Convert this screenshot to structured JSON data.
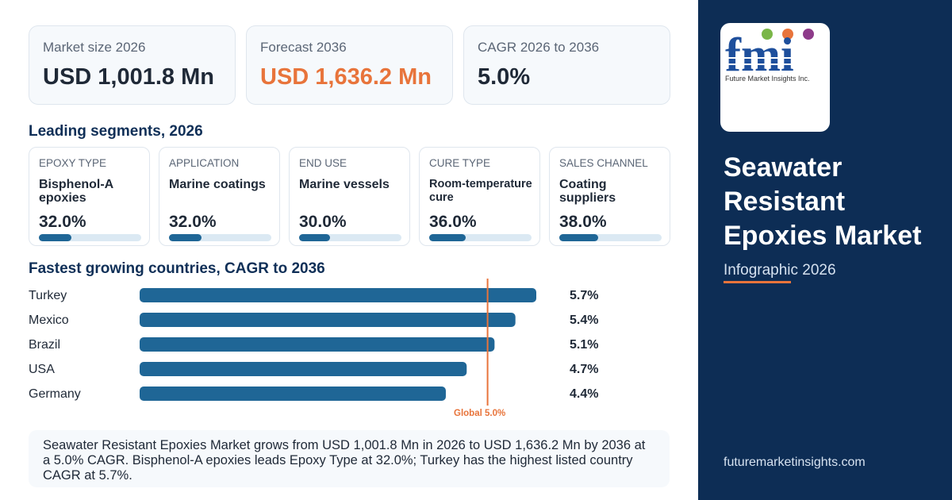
{
  "kpis": [
    {
      "label": "Market size 2026",
      "value": "USD 1,001.8 Mn"
    },
    {
      "label": "Forecast 2036",
      "value": "USD 1,636.2 Mn"
    },
    {
      "label": "CAGR 2026 to 2036",
      "value": "5.0%"
    }
  ],
  "segments_title": "Leading segments, 2026",
  "segments": [
    {
      "label": "EPOXY TYPE",
      "name": "Bisphenol-A epoxies",
      "share": "32.0%",
      "value": 32.0
    },
    {
      "label": "APPLICATION",
      "name": "Marine coatings",
      "share": "32.0%",
      "value": 32.0
    },
    {
      "label": "END USE",
      "name": "Marine vessels",
      "share": "30.0%",
      "value": 30.0
    },
    {
      "label": "CURE TYPE",
      "name": "Room-temperature cure",
      "share": "36.0%",
      "value": 36.0
    },
    {
      "label": "SALES CHANNEL",
      "name": "Coating suppliers",
      "share": "38.0%",
      "value": 38.0
    }
  ],
  "countries_title": "Fastest growing countries, CAGR to 2036",
  "chart_data": {
    "type": "bar",
    "orientation": "horizontal",
    "title": "Fastest growing countries, CAGR to 2036",
    "categories": [
      "Turkey",
      "Mexico",
      "Brazil",
      "USA",
      "Germany"
    ],
    "values": [
      5.7,
      5.4,
      5.1,
      4.7,
      4.4
    ],
    "value_labels": [
      "5.7%",
      "5.4%",
      "5.1%",
      "4.7%",
      "4.4%"
    ],
    "reference_line": {
      "value": 5.0,
      "label": "Global 5.0%"
    },
    "xlim": [
      0,
      5.7
    ],
    "grid": false,
    "colors": {
      "bar": "#1f6696",
      "reference": "#e8743b"
    }
  },
  "summary": "Seawater Resistant Epoxies Market grows from USD 1,001.8 Mn in 2026 to USD 1,636.2 Mn by 2036 at a 5.0% CAGR. Bisphenol-A epoxies leads Epoxy Type at 32.0%; Turkey has the highest listed country CAGR at 5.7%.",
  "sidebar": {
    "logo_text": "fmi",
    "logo_subtext": "Future Market Insights Inc.",
    "title": "Seawater Resistant Epoxies Market",
    "subtitle": "Infographic 2026",
    "url": "futuremarketinsights.com"
  },
  "colors": {
    "accent": "#e8743b",
    "navy": "#0d2d55",
    "bar": "#1f6696",
    "track": "#dbe9f3"
  }
}
